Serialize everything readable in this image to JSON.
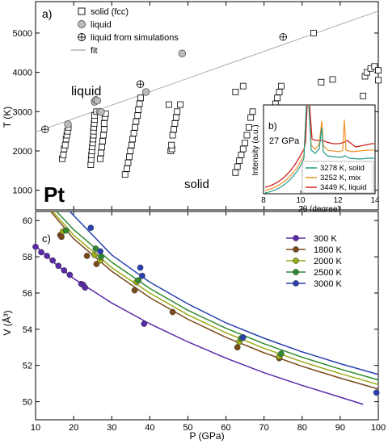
{
  "panel_a": {
    "panel_label": "a)",
    "legend": {
      "solid": "solid (fcc)",
      "liquid": "liquid",
      "liquid_sim": "liquid from simulations",
      "fit": "fit"
    },
    "label_liquid": "liquid",
    "label_solid": "solid",
    "label_element": "Pt",
    "ylabel": "T (K)"
  },
  "panel_b": {
    "panel_label": "b)",
    "pressure_label": "27 GPa",
    "xlabel": "2θ (degree)",
    "ylabel": "Intensity (a.u.)",
    "legend": [
      "3278 K, solid",
      "3252 K, mix",
      "3449 K, liquid"
    ]
  },
  "panel_c": {
    "panel_label": "c)",
    "xlabel": "P (GPa)",
    "ylabel": "V (Å³)",
    "legend": [
      "300 K",
      "1800 K",
      "2000 K",
      "2500 K",
      "3000 K"
    ]
  },
  "chart_data": [
    {
      "type": "scatter",
      "panel": "a",
      "xlabel": "",
      "ylabel": "T (K)",
      "xlim": [
        10,
        100
      ],
      "ylim": [
        500,
        5800
      ],
      "yticks": [
        1000,
        2000,
        3000,
        4000,
        5000
      ],
      "fit_line": {
        "x": [
          10,
          100
        ],
        "y": [
          2480,
          5560
        ]
      },
      "series": [
        {
          "name": "solid (fcc)",
          "marker": "square",
          "points": [
            [
              17,
              1800
            ],
            [
              17.3,
              1900
            ],
            [
              17.5,
              2050
            ],
            [
              17.8,
              2150
            ],
            [
              18,
              2300
            ],
            [
              18.2,
              2400
            ],
            [
              18.4,
              2500
            ],
            [
              18.6,
              2600
            ],
            [
              24.5,
              1650
            ],
            [
              24.6,
              1780
            ],
            [
              24.7,
              1900
            ],
            [
              24.8,
              2000
            ],
            [
              24.9,
              2100
            ],
            [
              25,
              2200
            ],
            [
              25.1,
              2300
            ],
            [
              25.2,
              2400
            ],
            [
              25.2,
              2500
            ],
            [
              25.3,
              2600
            ],
            [
              25.4,
              2700
            ],
            [
              25.5,
              2800
            ],
            [
              25.5,
              2900
            ],
            [
              26,
              3000
            ],
            [
              27,
              1800
            ],
            [
              27.2,
              1950
            ],
            [
              27.4,
              2100
            ],
            [
              27.6,
              2250
            ],
            [
              27.8,
              2400
            ],
            [
              28,
              2550
            ],
            [
              28,
              2700
            ],
            [
              28.2,
              2850
            ],
            [
              28.4,
              2950
            ],
            [
              33.5,
              1400
            ],
            [
              34,
              1550
            ],
            [
              34.3,
              1700
            ],
            [
              34.6,
              1850
            ],
            [
              34.9,
              2000
            ],
            [
              35.2,
              2150
            ],
            [
              35.5,
              2300
            ],
            [
              35.8,
              2450
            ],
            [
              36.1,
              2600
            ],
            [
              36.4,
              2750
            ],
            [
              36.8,
              2900
            ],
            [
              37,
              3050
            ],
            [
              37.3,
              3200
            ],
            [
              37.6,
              3350
            ],
            [
              45.5,
              2000
            ],
            [
              45.8,
              2050
            ],
            [
              45.7,
              2150
            ],
            [
              46,
              2400
            ],
            [
              46.3,
              2550
            ],
            [
              46.6,
              2700
            ],
            [
              46.9,
              2850
            ],
            [
              47.2,
              3000
            ],
            [
              45,
              3180
            ],
            [
              48,
              3180
            ],
            [
              62.5,
              1450
            ],
            [
              63,
              1600
            ],
            [
              63.5,
              1750
            ],
            [
              64,
              1900
            ],
            [
              64.5,
              2050
            ],
            [
              65,
              2200
            ],
            [
              65.5,
              2400
            ],
            [
              66,
              2600
            ],
            [
              66.5,
              2850
            ],
            [
              67,
              3000
            ],
            [
              62.5,
              3500
            ],
            [
              64.5,
              3650
            ],
            [
              72.5,
              3050
            ],
            [
              73,
              3200
            ],
            [
              73.5,
              3350
            ],
            [
              74,
              3500
            ],
            [
              74.5,
              3650
            ],
            [
              85,
              3750
            ],
            [
              88,
              3820
            ],
            [
              96,
              3400
            ],
            [
              96.5,
              3900
            ],
            [
              97,
              4000
            ],
            [
              98,
              4100
            ],
            [
              99,
              4150
            ],
            [
              100,
              4050
            ],
            [
              100,
              3800
            ],
            [
              83,
              5000
            ]
          ]
        },
        {
          "name": "liquid",
          "marker": "circle",
          "points": [
            [
              18.5,
              2680
            ],
            [
              25.5,
              3250
            ],
            [
              25.8,
              3300
            ],
            [
              26.2,
              3280
            ],
            [
              26.8,
              3000
            ],
            [
              27.2,
              2990
            ],
            [
              39,
              3500
            ],
            [
              48.5,
              4480
            ]
          ]
        },
        {
          "name": "liquid from simulations",
          "marker": "circle-plus",
          "points": [
            [
              12.5,
              2550
            ],
            [
              37.5,
              3700
            ],
            [
              75,
              4900
            ]
          ]
        },
        {
          "name": "fit",
          "marker": "line",
          "points": [
            [
              10,
              2480
            ],
            [
              100,
              5560
            ]
          ]
        }
      ]
    },
    {
      "type": "line",
      "panel": "b",
      "xlabel": "2θ (degree)",
      "ylabel": "Intensity (a.u.)",
      "xlim": [
        8,
        14
      ],
      "xticks": [
        8,
        10,
        12,
        14
      ],
      "series": [
        {
          "name": "3278 K, solid",
          "color": "#1f9a8a"
        },
        {
          "name": "3252 K, mix",
          "color": "#f0922a"
        },
        {
          "name": "3449 K, liquid",
          "color": "#d01f1f"
        }
      ]
    },
    {
      "type": "scatter",
      "panel": "c",
      "xlabel": "P (GPa)",
      "ylabel": "V (Å³)",
      "xlim": [
        10,
        100
      ],
      "ylim": [
        49,
        60.5
      ],
      "xticks": [
        10,
        20,
        30,
        40,
        50,
        60,
        70,
        80,
        90,
        100
      ],
      "yticks": [
        50,
        52,
        54,
        56,
        58,
        60
      ],
      "series": [
        {
          "name": "300 K",
          "color": "#5a2aa8",
          "points": [
            [
              10,
              58.55
            ],
            [
              11.5,
              58.25
            ],
            [
              13,
              58.05
            ],
            [
              14.5,
              57.8
            ],
            [
              16,
              57.5
            ],
            [
              17.5,
              57.25
            ],
            [
              19,
              57.0
            ],
            [
              22,
              56.5
            ],
            [
              22.5,
              56.45
            ],
            [
              23,
              56.3
            ],
            [
              38.5,
              54.3
            ]
          ],
          "curve": [
            [
              10,
              58.6
            ],
            [
              15,
              57.65
            ],
            [
              20,
              56.8
            ],
            [
              30,
              55.45
            ],
            [
              40,
              54.3
            ],
            [
              50,
              53.3
            ],
            [
              60,
              52.4
            ],
            [
              70,
              51.6
            ],
            [
              80,
              50.9
            ],
            [
              90,
              50.25
            ],
            [
              96,
              49.85
            ]
          ]
        },
        {
          "name": "1800 K",
          "color": "#7a4a1a",
          "points": [
            [
              16.5,
              59.2
            ],
            [
              16.8,
              59.1
            ],
            [
              26,
              57.6
            ],
            [
              23.5,
              58.05
            ],
            [
              36,
              56.15
            ],
            [
              46,
              54.95
            ],
            [
              63,
              53.0
            ],
            [
              74,
              52.4
            ]
          ],
          "curve": [
            [
              14,
              60.5
            ],
            [
              20,
              59.0
            ],
            [
              30,
              57.2
            ],
            [
              40,
              55.75
            ],
            [
              50,
              54.55
            ],
            [
              60,
              53.55
            ],
            [
              70,
              52.7
            ],
            [
              80,
              51.95
            ],
            [
              90,
              51.3
            ],
            [
              100,
              50.7
            ]
          ]
        },
        {
          "name": "2000 K",
          "color": "#9aaa18",
          "points": [
            [
              17.2,
              59.4
            ],
            [
              25.5,
              58.1
            ],
            [
              27,
              57.8
            ],
            [
              36.5,
              56.6
            ],
            [
              63.5,
              53.3
            ],
            [
              74,
              52.5
            ]
          ],
          "curve": [
            [
              14.5,
              60.5
            ],
            [
              20,
              59.2
            ],
            [
              30,
              57.4
            ],
            [
              40,
              56.0
            ],
            [
              50,
              54.8
            ],
            [
              60,
              53.8
            ],
            [
              70,
              52.95
            ],
            [
              80,
              52.2
            ],
            [
              90,
              51.55
            ],
            [
              100,
              50.95
            ]
          ]
        },
        {
          "name": "2500 K",
          "color": "#2f8a2f",
          "points": [
            [
              18,
              59.45
            ],
            [
              25.8,
              58.45
            ],
            [
              27.2,
              58.0
            ],
            [
              37,
              56.7
            ],
            [
              64,
              53.5
            ],
            [
              74.5,
              52.65
            ]
          ],
          "curve": [
            [
              15.5,
              60.5
            ],
            [
              20,
              59.5
            ],
            [
              30,
              57.7
            ],
            [
              40,
              56.25
            ],
            [
              50,
              55.05
            ],
            [
              60,
              54.05
            ],
            [
              70,
              53.2
            ],
            [
              80,
              52.45
            ],
            [
              90,
              51.8
            ],
            [
              100,
              51.2
            ]
          ]
        },
        {
          "name": "3000 K",
          "color": "#2840b0",
          "points": [
            [
              24.5,
              59.6
            ],
            [
              27,
              58.3
            ],
            [
              37.5,
              57.4
            ],
            [
              38,
              56.95
            ],
            [
              64.5,
              53.55
            ],
            [
              99.5,
              50.5
            ]
          ],
          "curve": [
            [
              19,
              60.5
            ],
            [
              30,
              58.1
            ],
            [
              40,
              56.6
            ],
            [
              50,
              55.4
            ],
            [
              60,
              54.35
            ],
            [
              70,
              53.5
            ],
            [
              80,
              52.75
            ],
            [
              90,
              52.1
            ],
            [
              100,
              51.5
            ]
          ]
        }
      ]
    }
  ]
}
